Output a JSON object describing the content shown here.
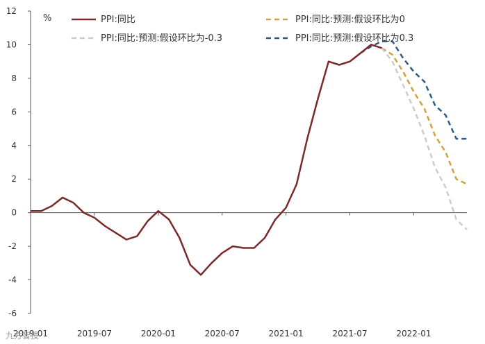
{
  "chart_data": {
    "type": "line",
    "unit": "%",
    "ylim": [
      -6,
      12
    ],
    "yticks": [
      -6,
      -4,
      -2,
      0,
      2,
      4,
      6,
      8,
      10,
      12
    ],
    "xtick_labels": [
      "2019-01",
      "2019-07",
      "2020-01",
      "2020-07",
      "2021-01",
      "2021-07",
      "2022-01"
    ],
    "xtick_months": [
      0,
      6,
      12,
      18,
      24,
      30,
      36
    ],
    "month_range": [
      0,
      41
    ],
    "series": [
      {
        "name": "PPI:同比",
        "color": "#7a2a2a",
        "dash": "",
        "x": [
          0,
          1,
          2,
          3,
          4,
          5,
          6,
          7,
          8,
          9,
          10,
          11,
          12,
          13,
          14,
          15,
          16,
          17,
          18,
          19,
          20,
          21,
          22,
          23,
          24,
          25,
          26,
          27,
          28,
          29,
          30,
          31,
          32,
          33
        ],
        "values": [
          0.1,
          0.1,
          0.4,
          0.9,
          0.6,
          0.0,
          -0.3,
          -0.8,
          -1.2,
          -1.6,
          -1.4,
          -0.5,
          0.1,
          -0.4,
          -1.5,
          -3.1,
          -3.7,
          -3.0,
          -2.4,
          -2.0,
          -2.1,
          -2.1,
          -1.5,
          -0.4,
          0.3,
          1.7,
          4.4,
          6.8,
          9.0,
          8.8,
          9.0,
          9.5,
          10.0,
          9.8
        ]
      },
      {
        "name": "PPI:同比:预测:假设环比为0",
        "color": "#d4a03c",
        "dash": "7,5",
        "x": [
          33,
          34,
          35,
          36,
          37,
          38,
          39,
          40,
          41
        ],
        "values": [
          9.8,
          9.4,
          8.4,
          7.2,
          6.2,
          4.6,
          3.6,
          2.0,
          1.7
        ]
      },
      {
        "name": "PPI:同比:预测:假设环比为-0.3",
        "color": "#cccccc",
        "dash": "7,5",
        "x": [
          33,
          34,
          35,
          36,
          37,
          38,
          39,
          40,
          41
        ],
        "values": [
          9.8,
          9.0,
          7.6,
          6.2,
          4.6,
          2.7,
          1.5,
          -0.4,
          -1.0
        ]
      },
      {
        "name": "PPI:同比:预测:假设环比为0.3",
        "color": "#2e5b8a",
        "dash": "7,5",
        "x": [
          31,
          32,
          33,
          34,
          35,
          36,
          37,
          38,
          39,
          40,
          41
        ],
        "values": [
          9.5,
          9.9,
          10.2,
          10.2,
          9.2,
          8.4,
          7.8,
          6.4,
          5.8,
          4.4,
          4.4
        ]
      }
    ]
  },
  "watermark": "九方智投"
}
